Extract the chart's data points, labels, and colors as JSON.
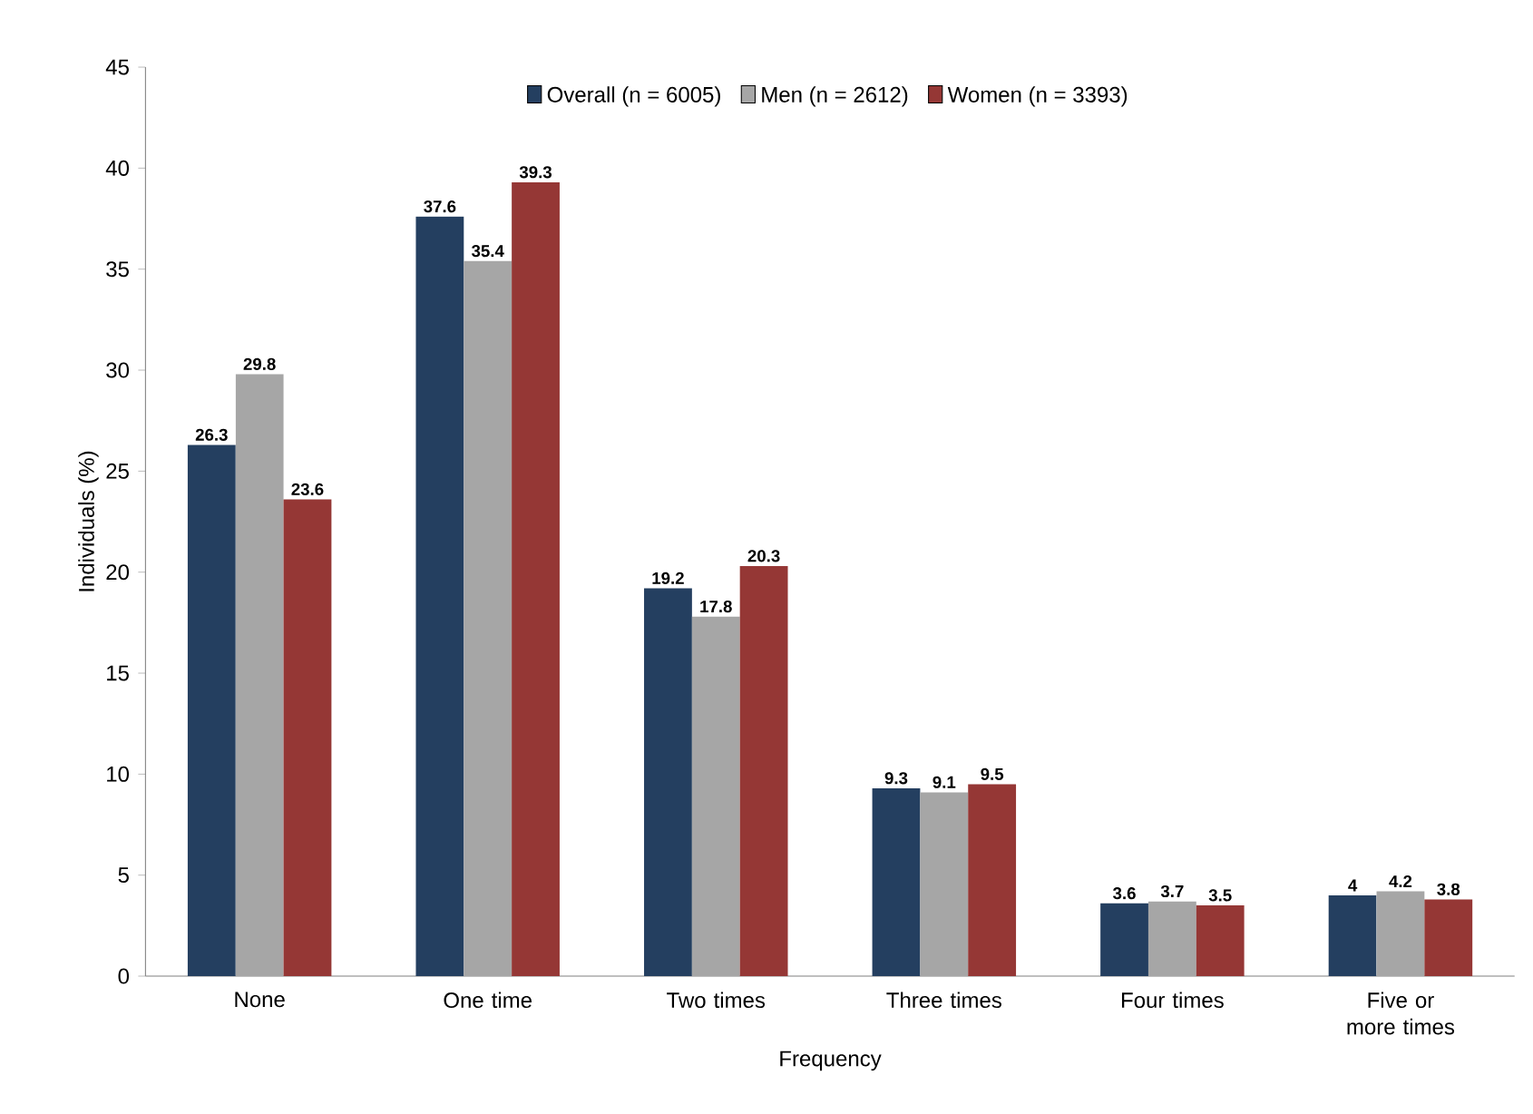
{
  "chart_data": {
    "type": "bar",
    "xlabel": "Frequency",
    "ylabel": "Individuals (%)",
    "categories": [
      "None",
      "One time",
      "Two times",
      "Three times",
      "Four times",
      "Five or more times"
    ],
    "series": [
      {
        "name": "Overall (n = 6005)",
        "color": "#243f60",
        "values": [
          26.3,
          37.6,
          19.2,
          9.3,
          3.6,
          4
        ]
      },
      {
        "name": "Men (n = 2612)",
        "color": "#a6a6a6",
        "values": [
          29.8,
          35.4,
          17.8,
          9.1,
          3.7,
          4.2
        ]
      },
      {
        "name": "Women (n = 3393)",
        "color": "#953735",
        "values": [
          23.6,
          39.3,
          20.3,
          9.5,
          3.5,
          3.8
        ]
      }
    ],
    "ylim": [
      0,
      45
    ],
    "yticks": [
      0,
      5,
      10,
      15,
      20,
      25,
      30,
      35,
      40,
      45
    ],
    "data_labels": true,
    "legend": "top",
    "grid": false
  }
}
